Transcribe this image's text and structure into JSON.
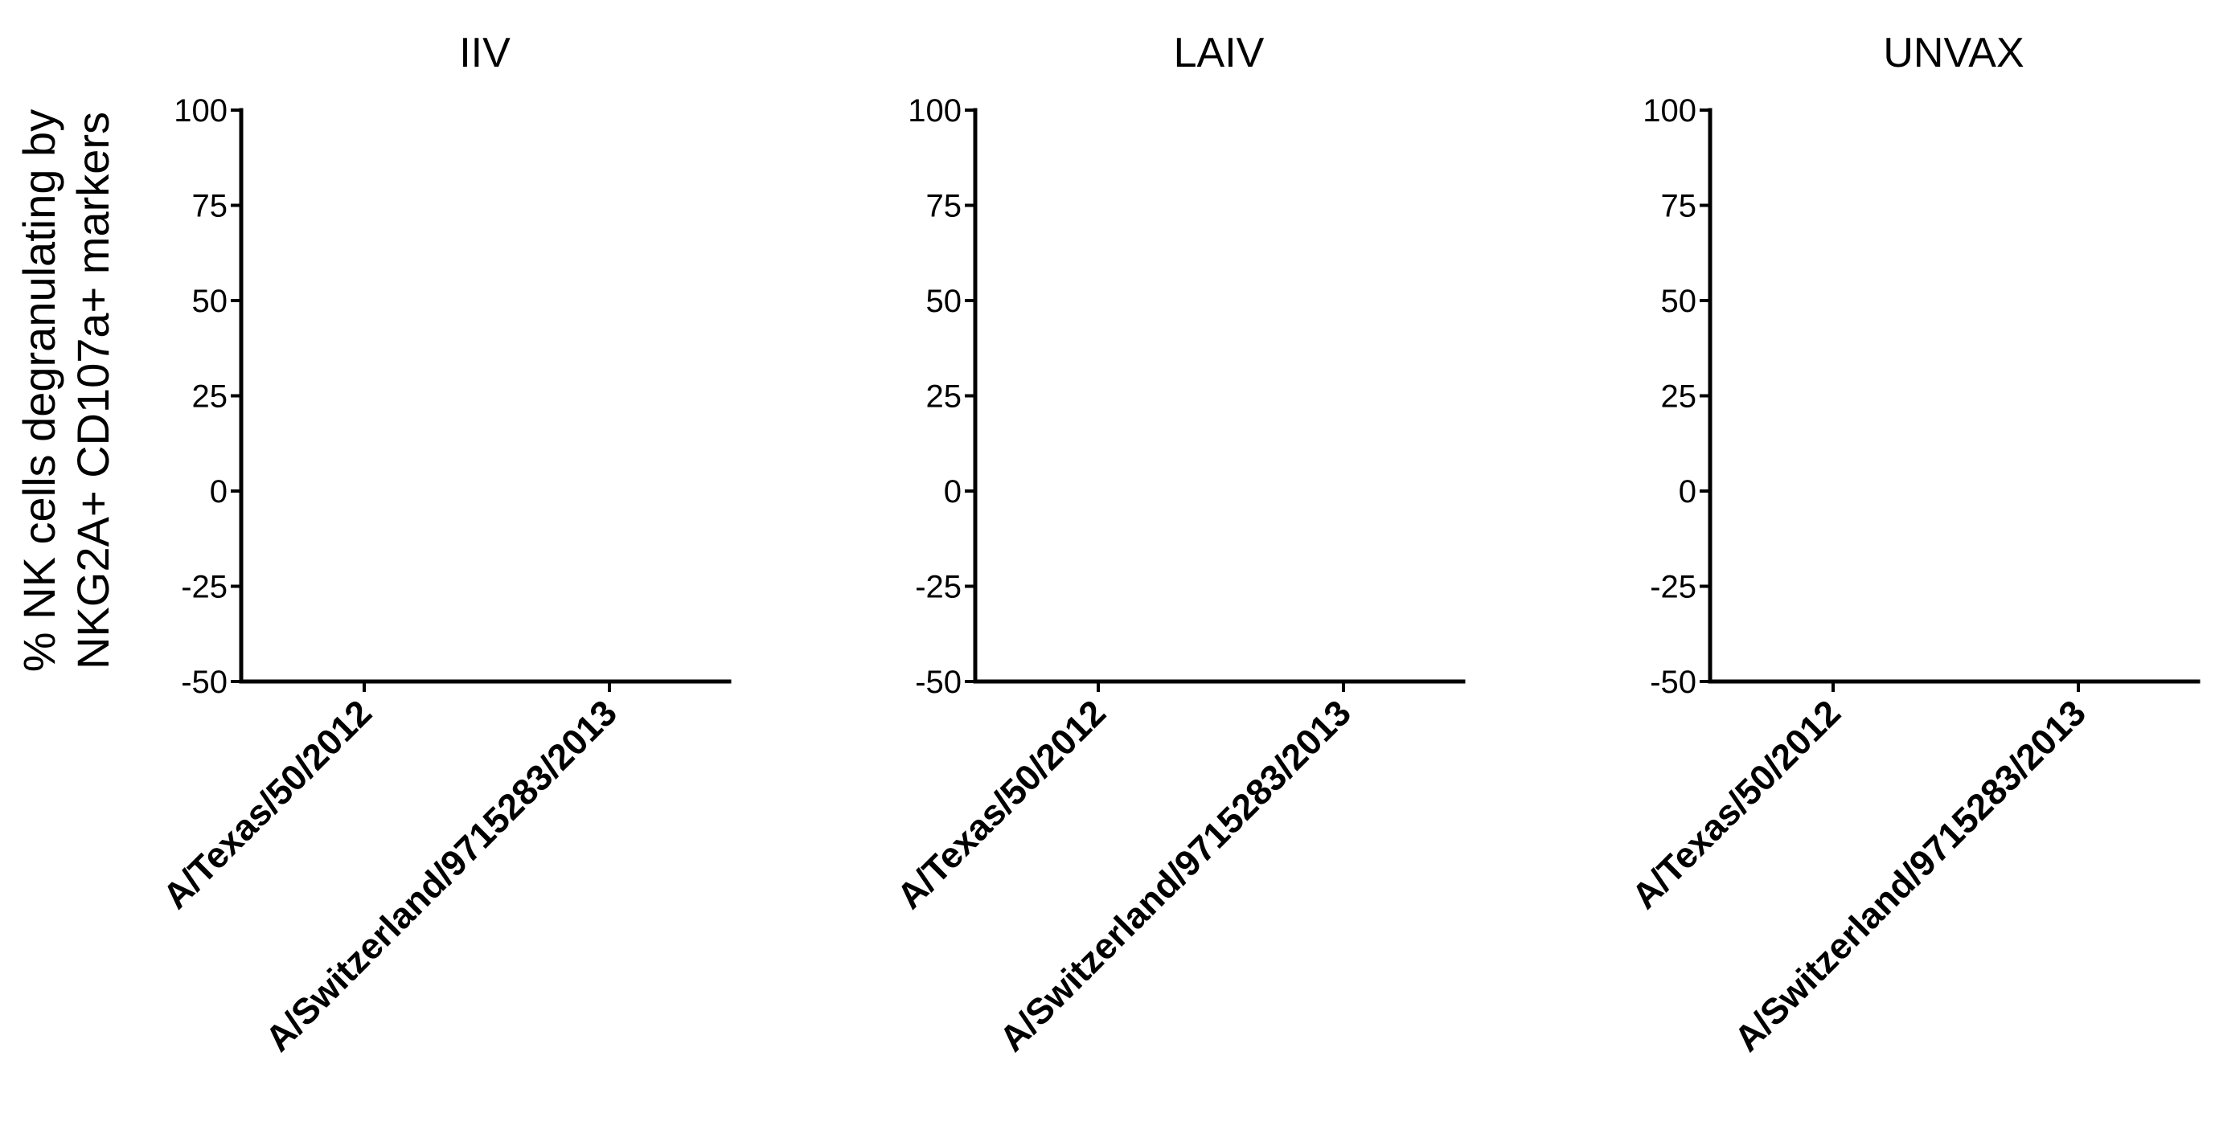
{
  "figure": {
    "ylabel_lines": [
      "% NK cells degranulating by",
      "NKG2A+ CD107a+ markers"
    ]
  },
  "chart_data": [
    {
      "type": "scatter",
      "title": "IIV",
      "categories": [
        "A/Texas/50/2012",
        "A/Switzerland/9715283/2013"
      ],
      "series": [],
      "ylabel": "% NK cells degranulating by NKG2A+ CD107a+ markers",
      "ylim": [
        -50,
        100
      ],
      "yticks": [
        100,
        75,
        50,
        25,
        0,
        -25,
        -50
      ],
      "grid": false
    },
    {
      "type": "scatter",
      "title": "LAIV",
      "categories": [
        "A/Texas/50/2012",
        "A/Switzerland/9715283/2013"
      ],
      "series": [],
      "ylim": [
        -50,
        100
      ],
      "yticks": [
        100,
        75,
        50,
        25,
        0,
        -25,
        -50
      ],
      "grid": false
    },
    {
      "type": "scatter",
      "title": "UNVAX",
      "categories": [
        "A/Texas/50/2012",
        "A/Switzerland/9715283/2013"
      ],
      "series": [],
      "ylim": [
        -50,
        100
      ],
      "yticks": [
        100,
        75,
        50,
        25,
        0,
        -25,
        -50
      ],
      "grid": false
    }
  ]
}
